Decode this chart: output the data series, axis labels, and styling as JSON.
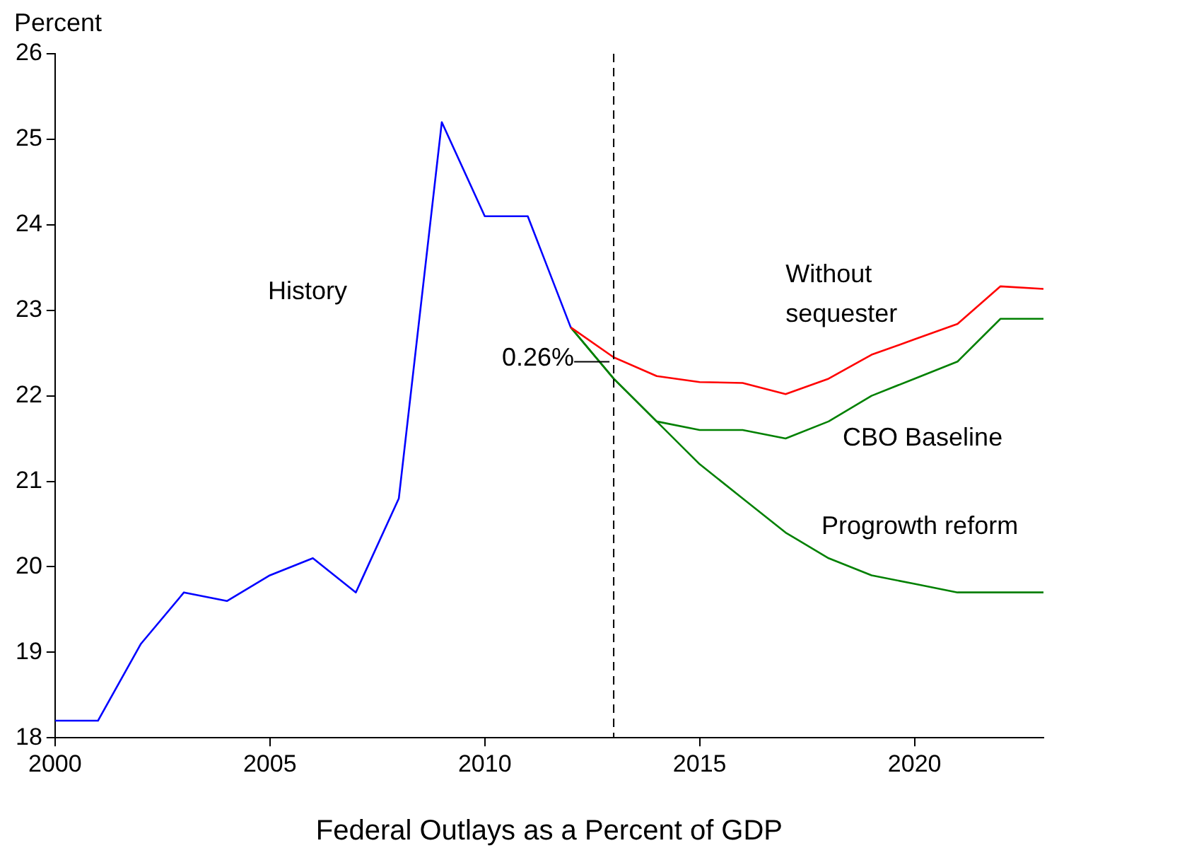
{
  "chart_data": {
    "type": "line",
    "xlabel": "Federal Outlays as a Percent of GDP",
    "ylabel": "Percent",
    "xlim": [
      2000,
      2023
    ],
    "xticks": [
      2000,
      2005,
      2010,
      2015,
      2020
    ],
    "ylim": [
      18,
      26
    ],
    "yticks": [
      18,
      19,
      20,
      21,
      22,
      23,
      24,
      25,
      26
    ],
    "grid": false,
    "legend": false,
    "marker": "none",
    "line_style": "solid",
    "series": [
      {
        "name": "History",
        "color": "#0000ff",
        "x": [
          2000,
          2001,
          2002,
          2003,
          2004,
          2005,
          2006,
          2007,
          2008,
          2009,
          2010,
          2011,
          2012
        ],
        "values": [
          18.2,
          18.2,
          19.1,
          19.7,
          19.6,
          19.9,
          20.1,
          19.7,
          20.8,
          25.2,
          24.1,
          24.1,
          22.8
        ]
      },
      {
        "name": "Without sequester",
        "color": "#ff0000",
        "x": [
          2012,
          2013,
          2014,
          2015,
          2016,
          2017,
          2018,
          2019,
          2020,
          2021,
          2022,
          2023
        ],
        "values": [
          22.8,
          22.45,
          22.23,
          22.16,
          22.15,
          22.02,
          22.2,
          22.48,
          22.66,
          22.84,
          23.28,
          23.25
        ]
      },
      {
        "name": "CBO Baseline",
        "color": "#008000",
        "x": [
          2012,
          2013,
          2014,
          2015,
          2016,
          2017,
          2018,
          2019,
          2020,
          2021,
          2022,
          2023
        ],
        "values": [
          22.8,
          22.2,
          21.7,
          21.6,
          21.6,
          21.5,
          21.7,
          22.0,
          22.2,
          22.4,
          22.9,
          22.9
        ]
      },
      {
        "name": "Progrowth reform",
        "color": "#008000",
        "x": [
          2012,
          2013,
          2014,
          2015,
          2016,
          2017,
          2018,
          2019,
          2020,
          2021,
          2022,
          2023
        ],
        "values": [
          22.8,
          22.2,
          21.7,
          21.2,
          20.8,
          20.4,
          20.1,
          19.9,
          19.8,
          19.7,
          19.7,
          19.7
        ]
      }
    ],
    "ref_lines": [
      {
        "axis": "x",
        "value": 2013,
        "color": "#000000",
        "line_style": "dashed"
      }
    ],
    "annotations": [
      {
        "text": "0.26%",
        "x": 2013,
        "y": 22.2
      }
    ]
  }
}
